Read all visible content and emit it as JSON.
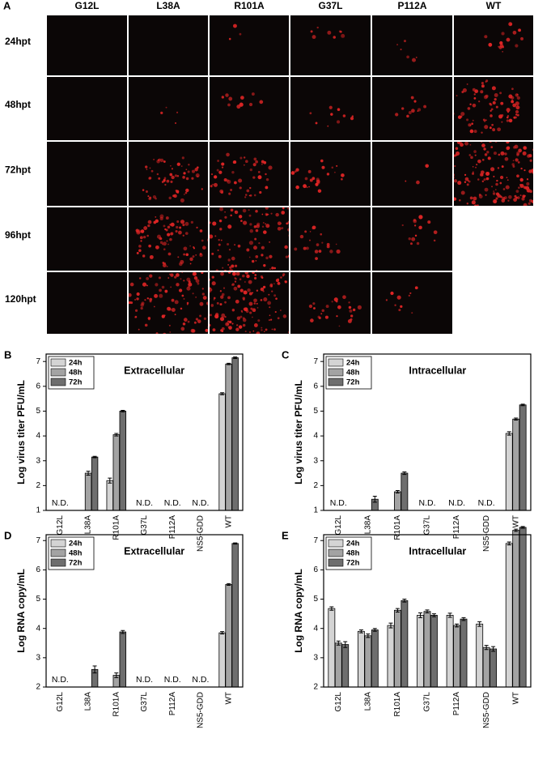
{
  "panel_a": {
    "label": "A",
    "columns": [
      "G12L",
      "L38A",
      "R101A",
      "G37L",
      "P112A",
      "WT"
    ],
    "rows": [
      "24hpt",
      "48hpt",
      "72hpt",
      "96hpt",
      "120hpt"
    ]
  },
  "chart_data": [
    {
      "type": "bar",
      "panel_label": "B",
      "title": "Extracellular",
      "y_label": "Log virus titer PFU/mL",
      "categories": [
        "G12L",
        "L38A",
        "R101A",
        "G37L",
        "P112A",
        "NS5-GDD",
        "WT"
      ],
      "series": [
        {
          "name": "24h",
          "color": "#d4d4d4",
          "values": [
            null,
            null,
            2.2,
            null,
            null,
            null,
            5.7
          ],
          "errors": [
            null,
            null,
            0.1,
            null,
            null,
            null,
            0.04
          ]
        },
        {
          "name": "48h",
          "color": "#a3a3a3",
          "values": [
            null,
            2.5,
            4.05,
            null,
            null,
            null,
            6.9
          ],
          "errors": [
            null,
            0.08,
            0.05,
            null,
            null,
            null,
            0.03
          ]
        },
        {
          "name": "72h",
          "color": "#6e6e6e",
          "values": [
            null,
            3.15,
            5.0,
            null,
            null,
            null,
            7.15
          ],
          "errors": [
            null,
            0.03,
            0.03,
            null,
            null,
            null,
            0.03
          ]
        }
      ],
      "annotations": [
        {
          "text": "N.D.",
          "category": "G12L"
        },
        {
          "text": "N.D.",
          "category": "G37L"
        },
        {
          "text": "N.D.",
          "category": "P112A"
        },
        {
          "text": "N.D.",
          "category": "NS5-GDD"
        }
      ],
      "ylim": [
        1,
        7.3
      ],
      "yticks": [
        1,
        2,
        3,
        4,
        5,
        6,
        7
      ],
      "legend": "top-left"
    },
    {
      "type": "bar",
      "panel_label": "C",
      "title": "Intracellular",
      "y_label": "Log virus titer PFU/mL",
      "categories": [
        "G12L",
        "L38A",
        "R101A",
        "G37L",
        "P112A",
        "NS5-GDD",
        "WT"
      ],
      "series": [
        {
          "name": "24h",
          "color": "#d4d4d4",
          "values": [
            null,
            null,
            null,
            null,
            null,
            null,
            4.1
          ],
          "errors": [
            null,
            null,
            null,
            null,
            null,
            null,
            0.07
          ]
        },
        {
          "name": "48h",
          "color": "#a3a3a3",
          "values": [
            null,
            null,
            1.75,
            null,
            null,
            null,
            4.68
          ],
          "errors": [
            null,
            null,
            0.05,
            null,
            null,
            null,
            0.04
          ]
        },
        {
          "name": "72h",
          "color": "#6e6e6e",
          "values": [
            null,
            1.45,
            2.5,
            null,
            null,
            null,
            5.25
          ],
          "errors": [
            null,
            0.12,
            0.05,
            null,
            null,
            null,
            0.03
          ]
        }
      ],
      "annotations": [
        {
          "text": "N.D.",
          "category": "G12L"
        },
        {
          "text": "N.D.",
          "category": "G37L"
        },
        {
          "text": "N.D.",
          "category": "P112A"
        },
        {
          "text": "N.D.",
          "category": "NS5-GDD"
        }
      ],
      "ylim": [
        1,
        7.3
      ],
      "yticks": [
        1,
        2,
        3,
        4,
        5,
        6,
        7
      ],
      "legend": "top-left"
    },
    {
      "type": "bar",
      "panel_label": "D",
      "title": "Extracellular",
      "y_label": "Log RNA copy/mL",
      "categories": [
        "G12L",
        "L38A",
        "R101A",
        "G37L",
        "P112A",
        "NS5-GDD",
        "WT"
      ],
      "series": [
        {
          "name": "24h",
          "color": "#d4d4d4",
          "values": [
            null,
            null,
            null,
            null,
            null,
            null,
            3.85
          ],
          "errors": [
            null,
            null,
            null,
            null,
            null,
            null,
            0.04
          ]
        },
        {
          "name": "48h",
          "color": "#a3a3a3",
          "values": [
            null,
            null,
            2.4,
            null,
            null,
            null,
            5.5
          ],
          "errors": [
            null,
            null,
            0.08,
            null,
            null,
            null,
            0.03
          ]
        },
        {
          "name": "72h",
          "color": "#6e6e6e",
          "values": [
            null,
            2.6,
            3.88,
            null,
            null,
            null,
            6.9
          ],
          "errors": [
            null,
            0.12,
            0.05,
            null,
            null,
            null,
            0.02
          ]
        }
      ],
      "annotations": [
        {
          "text": "N.D.",
          "category": "G12L"
        },
        {
          "text": "N.D.",
          "category": "G37L"
        },
        {
          "text": "N.D.",
          "category": "P112A"
        },
        {
          "text": "N.D.",
          "category": "NS5-GDD"
        }
      ],
      "ylim": [
        2,
        7.2
      ],
      "yticks": [
        2,
        3,
        4,
        5,
        6,
        7
      ],
      "legend": "top-left"
    },
    {
      "type": "bar",
      "panel_label": "E",
      "title": "Intracellular",
      "y_label": "Log RNA copy/mL",
      "categories": [
        "G12L",
        "L38A",
        "R101A",
        "G37L",
        "P112A",
        "NS5-GDD",
        "WT"
      ],
      "series": [
        {
          "name": "24h",
          "color": "#d4d4d4",
          "values": [
            4.68,
            3.9,
            4.1,
            4.45,
            4.45,
            4.15,
            6.9
          ],
          "errors": [
            0.06,
            0.05,
            0.08,
            0.08,
            0.07,
            0.08,
            0.05
          ]
        },
        {
          "name": "48h",
          "color": "#a3a3a3",
          "values": [
            3.5,
            3.75,
            4.62,
            4.58,
            4.1,
            3.35,
            7.35
          ],
          "errors": [
            0.07,
            0.06,
            0.06,
            0.05,
            0.05,
            0.07,
            0.04
          ]
        },
        {
          "name": "72h",
          "color": "#6e6e6e",
          "values": [
            3.45,
            3.95,
            4.95,
            4.45,
            4.32,
            3.3,
            7.45
          ],
          "errors": [
            0.1,
            0.05,
            0.05,
            0.05,
            0.05,
            0.08,
            0.03
          ]
        }
      ],
      "ylim": [
        2,
        7.2
      ],
      "yticks": [
        2,
        3,
        4,
        5,
        6,
        7
      ],
      "legend": "top-left"
    }
  ]
}
